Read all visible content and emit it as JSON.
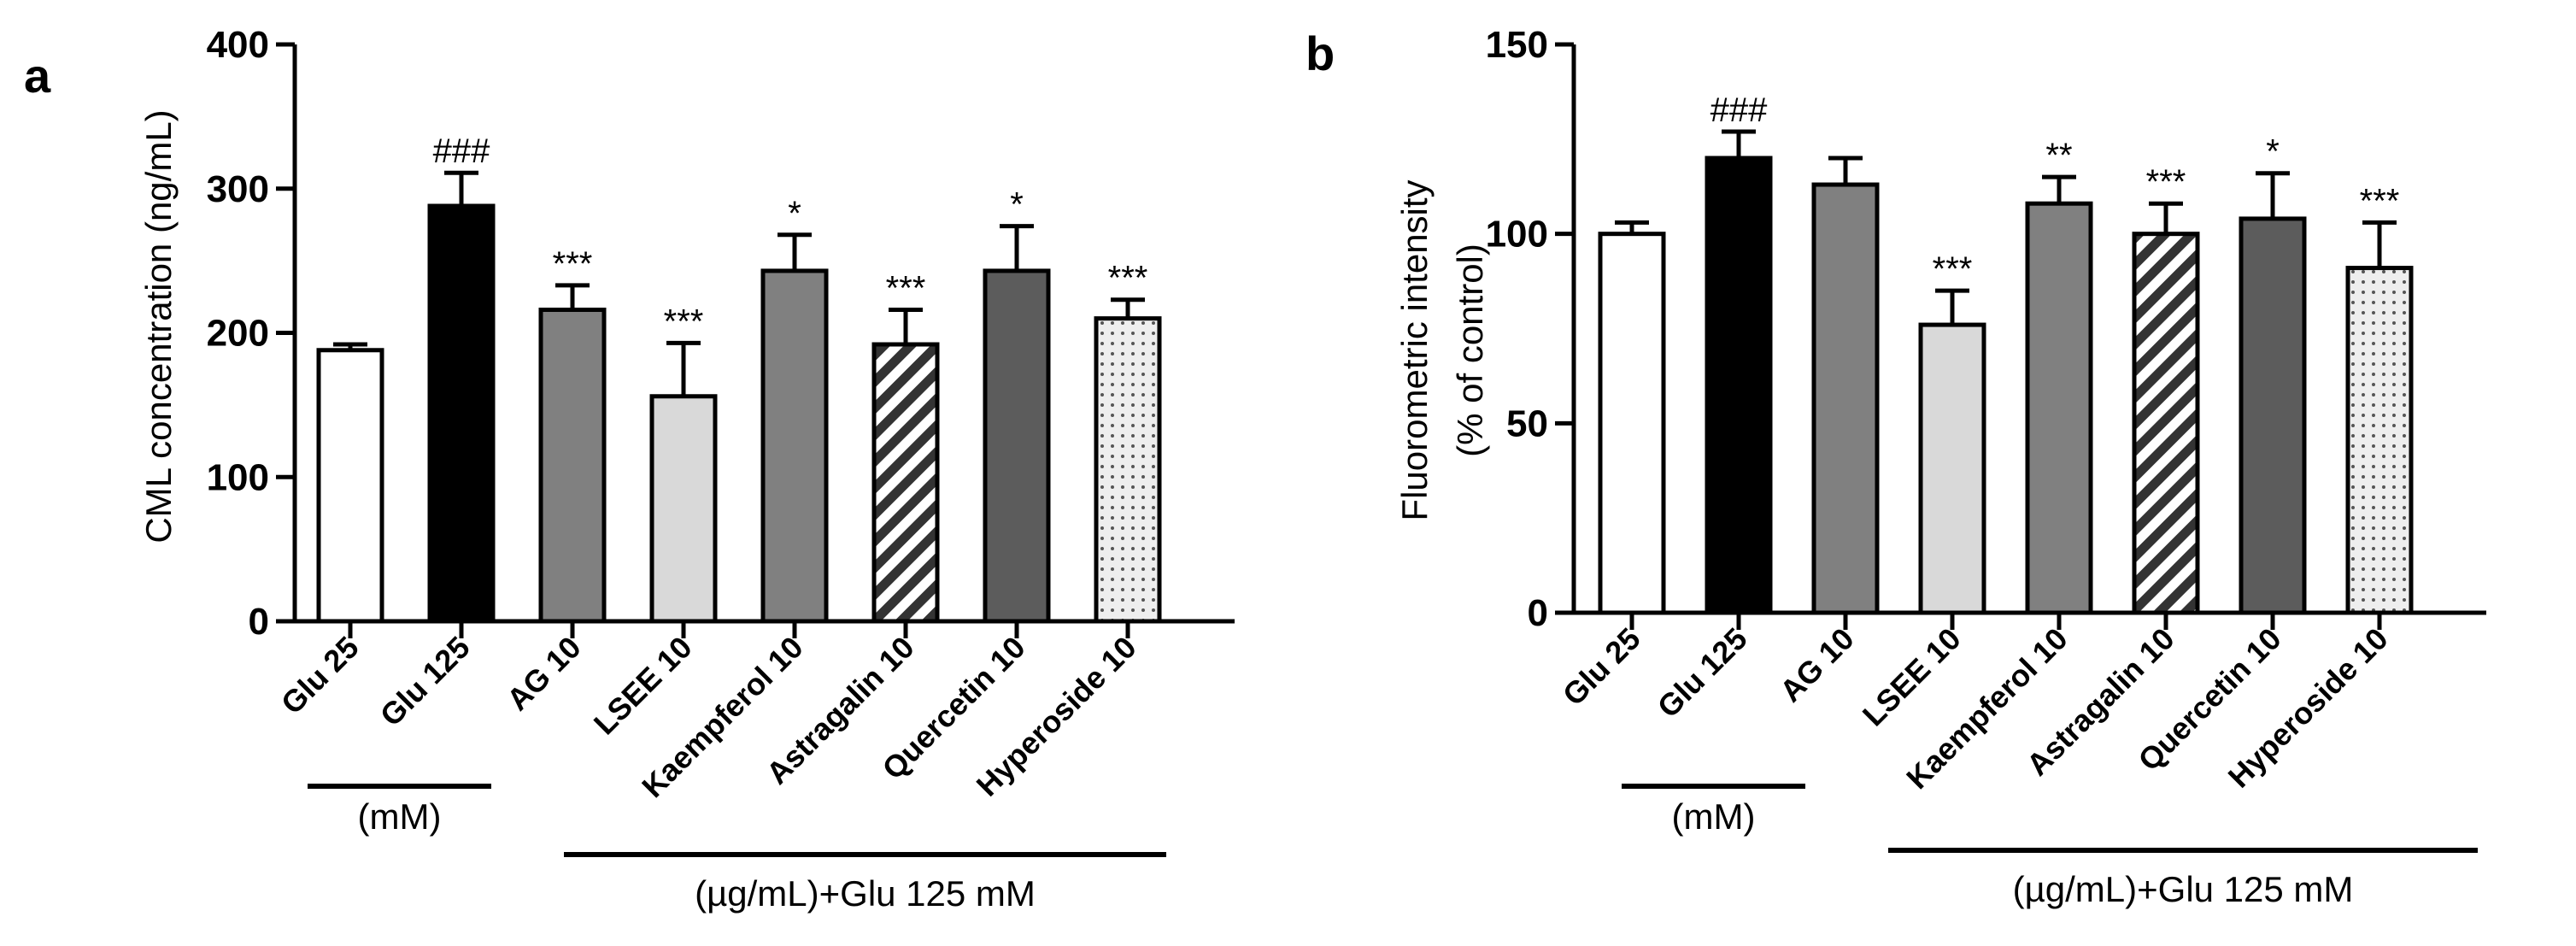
{
  "chart_data": [
    {
      "panel": "a",
      "type": "bar",
      "ylabel": "CML concentration (ng/mL)",
      "ylim": [
        0,
        400
      ],
      "yticks": [
        0,
        100,
        200,
        300,
        400
      ],
      "categories": [
        "Glu 25",
        "Glu 125",
        "AG 10",
        "LSEE 10",
        "Kaempferol 10",
        "Astragalin 10",
        "Quercetin 10",
        "Hyperoside 10"
      ],
      "values": [
        188,
        288,
        216,
        156,
        243,
        192,
        243,
        210
      ],
      "errors": [
        4,
        23,
        17,
        37,
        25,
        24,
        31,
        13
      ],
      "significance": [
        "",
        "###",
        "***",
        "***",
        "*",
        "***",
        "*",
        "***"
      ],
      "bar_colors": [
        "#ffffff",
        "#000000",
        "#808080",
        "#d9d9d9",
        "#808080",
        "hatch",
        "#5c5c5c",
        "dots"
      ],
      "groups": [
        {
          "label": "(mM)",
          "from": 0,
          "to": 1
        },
        {
          "label": "(µg/mL)+Glu 125 mM",
          "from": 2,
          "to": 7
        }
      ]
    },
    {
      "panel": "b",
      "type": "bar",
      "ylabel_line1": "Fluorometric intensity",
      "ylabel_line2": "(% of control)",
      "ylim": [
        0,
        150
      ],
      "yticks": [
        0,
        50,
        100,
        150
      ],
      "categories": [
        "Glu 25",
        "Glu 125",
        "AG 10",
        "LSEE 10",
        "Kaempferol 10",
        "Astragalin 10",
        "Quercetin 10",
        "Hyperoside 10"
      ],
      "values": [
        100,
        120,
        113,
        76,
        108,
        100,
        104,
        91
      ],
      "errors": [
        3,
        7,
        7,
        9,
        7,
        8,
        12,
        12
      ],
      "significance": [
        "",
        "###",
        "",
        "***",
        "**",
        "***",
        "*",
        "***"
      ],
      "bar_colors": [
        "#ffffff",
        "#000000",
        "#808080",
        "#d9d9d9",
        "#808080",
        "hatch",
        "#5c5c5c",
        "dots"
      ],
      "groups": [
        {
          "label": "(mM)",
          "from": 0,
          "to": 1
        },
        {
          "label": "(µg/mL)+Glu 125 mM",
          "from": 2,
          "to": 7
        }
      ]
    }
  ]
}
